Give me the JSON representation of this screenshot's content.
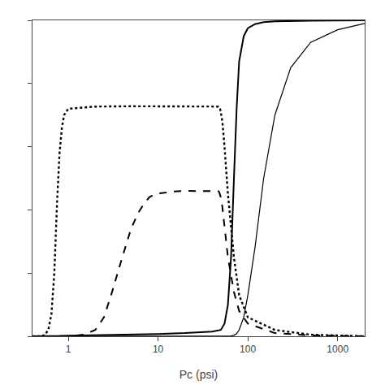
{
  "chart_data": {
    "type": "line",
    "xlabel": "Pc (psi)",
    "log": "x",
    "xlim": [
      0.4,
      2000
    ],
    "xticks": [
      1,
      10,
      100,
      1000
    ],
    "ylim": [
      0,
      1.0
    ],
    "yticks": [
      0,
      0.2,
      0.4,
      0.6,
      0.8,
      1.0
    ],
    "tick_labels": "x",
    "grid": false,
    "series": [
      {
        "color": "#000000",
        "line_style": "solid",
        "x": [
          0.4,
          0.5,
          1.0,
          2.0,
          5.0,
          10.0,
          20.0,
          30.0,
          40.0,
          50.0,
          60.0,
          65.0,
          70.0,
          75.0,
          80.0,
          90.0,
          100.0,
          120.0,
          150.0,
          200.0,
          300.0,
          500.0,
          1000.0,
          2000.0
        ],
        "values": [
          0.0,
          0.0,
          0.0,
          0.0,
          0.0,
          0.0,
          0.0,
          0.0,
          0.0,
          0.0,
          0.0,
          0.001,
          0.003,
          0.008,
          0.02,
          0.06,
          0.13,
          0.28,
          0.5,
          0.7,
          0.85,
          0.93,
          0.97,
          0.99
        ]
      },
      {
        "color": "#000000",
        "line_style": "dashed",
        "x": [
          0.4,
          0.5,
          1.0,
          1.5,
          2.0,
          2.5,
          3.0,
          4.0,
          5.0,
          6.0,
          7.0,
          8.0,
          9.0,
          10.0,
          12.0,
          15.0,
          20.0,
          30.0,
          40.0,
          45.0,
          47.0,
          48.0,
          49.0,
          50.0,
          52.0,
          55.0,
          60.0,
          70.0,
          80.0,
          100.0,
          200.0,
          500.0,
          2000.0
        ],
        "values": [
          0.0,
          0.0,
          0.0,
          0.005,
          0.02,
          0.06,
          0.13,
          0.25,
          0.34,
          0.39,
          0.42,
          0.44,
          0.448,
          0.452,
          0.455,
          0.458,
          0.46,
          0.46,
          0.46,
          0.46,
          0.459,
          0.456,
          0.45,
          0.44,
          0.41,
          0.35,
          0.25,
          0.14,
          0.08,
          0.04,
          0.01,
          0.003,
          0.0
        ]
      },
      {
        "color": "#000000",
        "line_style": "dotted",
        "x": [
          0.4,
          0.5,
          0.55,
          0.6,
          0.65,
          0.7,
          0.75,
          0.8,
          0.85,
          0.9,
          1.0,
          1.5,
          2.0,
          5.0,
          10.0,
          20.0,
          30.0,
          40.0,
          45.0,
          47.0,
          48.0,
          49.0,
          50.0,
          52.0,
          55.0,
          60.0,
          70.0,
          80.0,
          100.0,
          200.0,
          500.0,
          2000.0
        ],
        "values": [
          0.0,
          0.0,
          0.005,
          0.02,
          0.07,
          0.2,
          0.42,
          0.58,
          0.66,
          0.7,
          0.72,
          0.725,
          0.727,
          0.728,
          0.728,
          0.728,
          0.728,
          0.728,
          0.728,
          0.727,
          0.725,
          0.72,
          0.71,
          0.68,
          0.6,
          0.45,
          0.25,
          0.13,
          0.06,
          0.02,
          0.005,
          0.0
        ]
      },
      {
        "color": "#000000",
        "line_style": "solid",
        "x": [
          0.4,
          0.5,
          0.6,
          0.7,
          0.8,
          1.0,
          2.0,
          5.0,
          10.0,
          20.0,
          30.0,
          40.0,
          50.0,
          55.0,
          60.0,
          65.0,
          70.0,
          75.0,
          80.0,
          90.0,
          100.0,
          120.0,
          150.0,
          200.0,
          500.0,
          1000.0,
          2000.0
        ],
        "values": [
          0.0,
          0.0,
          0.0,
          0.001,
          0.001,
          0.002,
          0.003,
          0.005,
          0.007,
          0.01,
          0.012,
          0.015,
          0.02,
          0.04,
          0.1,
          0.25,
          0.5,
          0.72,
          0.87,
          0.95,
          0.975,
          0.988,
          0.994,
          0.997,
          0.999,
          1.0,
          1.0
        ]
      }
    ]
  }
}
